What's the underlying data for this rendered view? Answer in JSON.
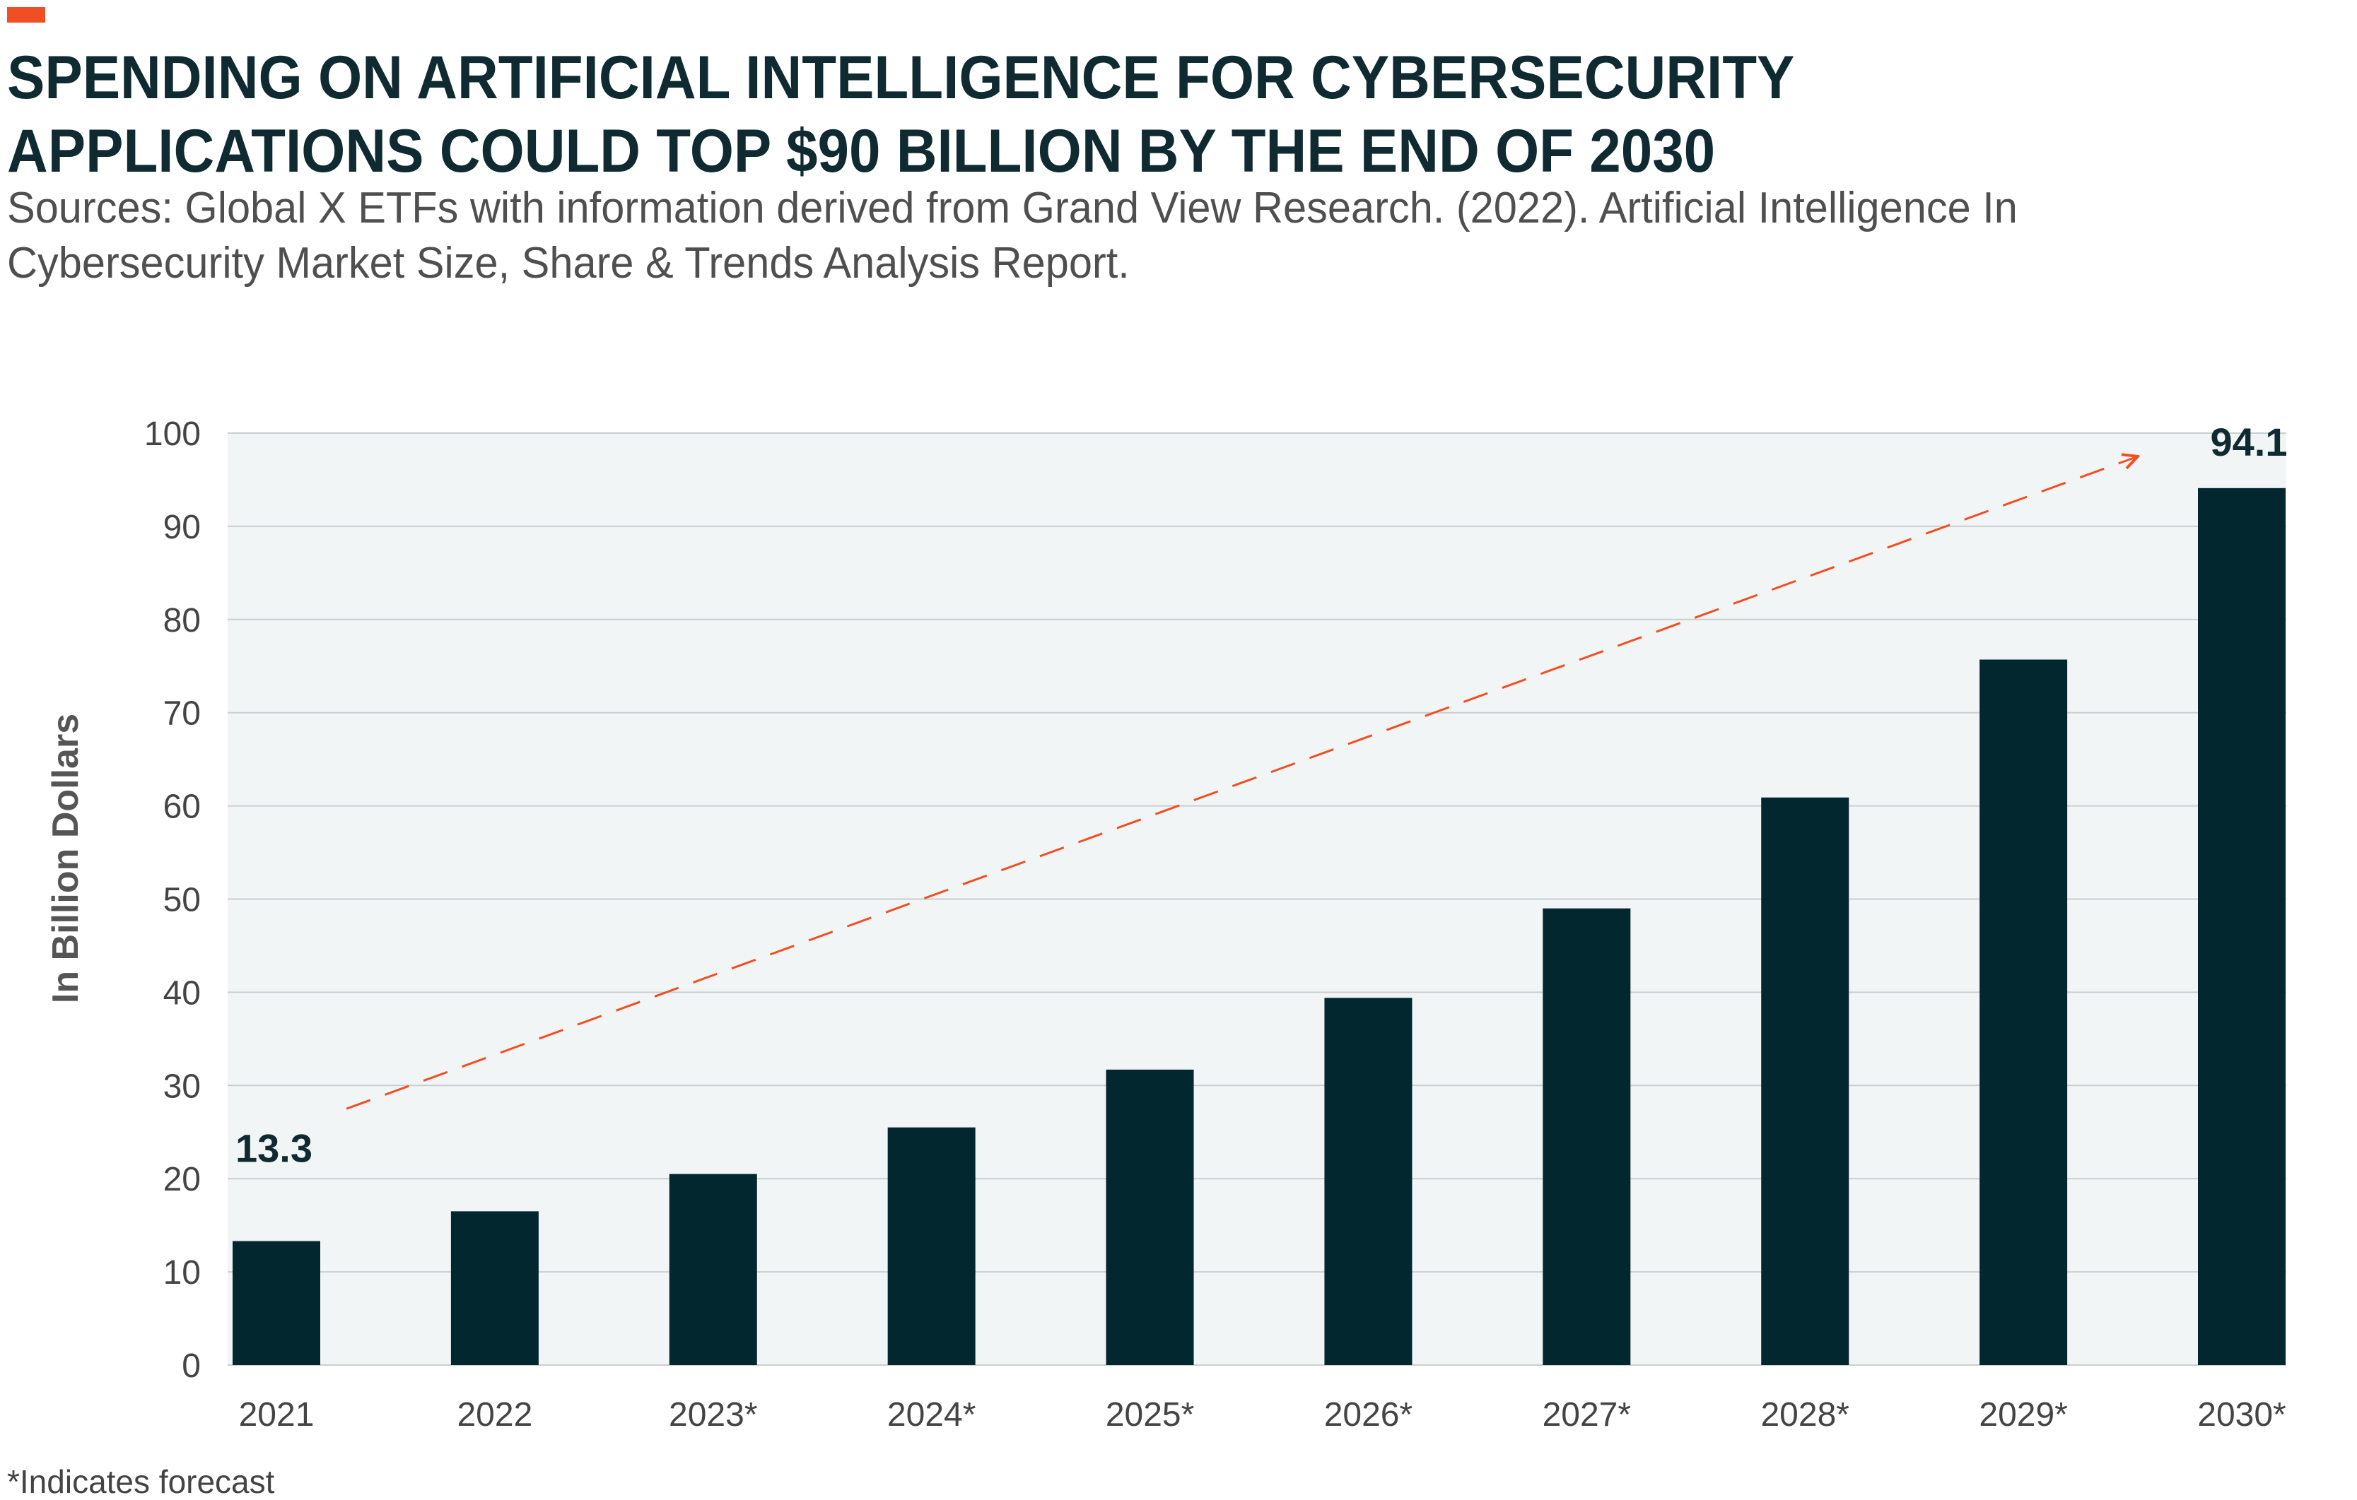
{
  "header": {
    "title": "SPENDING ON ARTIFICIAL INTELLIGENCE FOR CYBERSECURITY APPLICATIONS COULD TOP $90 BILLION BY THE END OF 2030",
    "sources": "Sources: Global X ETFs with information derived from Grand View Research. (2022). Artificial Intelligence In Cybersecurity Market Size, Share & Trends Analysis Report."
  },
  "footnote": "*Indicates forecast",
  "colors": {
    "accent": "#f04e23",
    "bar": "#02272e",
    "plot_bg": "#f2f5f5",
    "grid": "#c8cfd0",
    "trend": "#f04e23"
  },
  "chart_data": {
    "type": "bar",
    "title": "SPENDING ON ARTIFICIAL INTELLIGENCE FOR CYBERSECURITY APPLICATIONS COULD TOP $90 BILLION BY THE END OF 2030",
    "xlabel": "",
    "ylabel": "In Billion Dollars",
    "ylim": [
      0,
      100
    ],
    "yticks": [
      0,
      10,
      20,
      30,
      40,
      50,
      60,
      70,
      80,
      90,
      100
    ],
    "grid": true,
    "categories": [
      "2021",
      "2022",
      "2023*",
      "2024*",
      "2025*",
      "2026*",
      "2027*",
      "2028*",
      "2029*",
      "2030*"
    ],
    "values": [
      13.3,
      16.5,
      20.5,
      25.5,
      31.7,
      39.4,
      49.0,
      60.9,
      75.7,
      94.1
    ],
    "data_labels": [
      {
        "category": "2021",
        "text": "13.3"
      },
      {
        "category": "2030*",
        "text": "94.1"
      }
    ],
    "annotations": [
      {
        "type": "dashed-arrow",
        "description": "upward trend arrow",
        "from_value": 27.5,
        "to_value": 97.5
      }
    ]
  }
}
